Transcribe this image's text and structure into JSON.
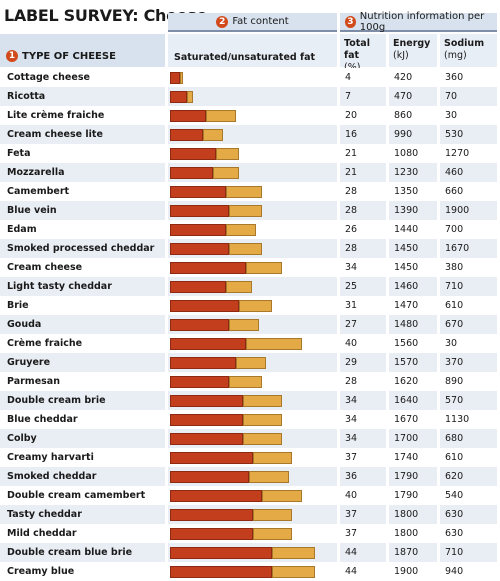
{
  "title": "LABEL SURVEY: Cheese",
  "headers": {
    "badge1": "1",
    "badge2": "2",
    "badge3": "3",
    "type_of_cheese": "TYPE OF CHEESE",
    "fat_content": "Fat content",
    "nutrition": "Nutrition information per 100g",
    "sat_unsat": "Saturated/unsaturated fat",
    "total_fat": "Total fat",
    "total_fat_unit": "(%)",
    "energy": "Energy",
    "energy_unit": "(kJ)",
    "sodium": "Sodium",
    "sodium_unit": "(mg)"
  },
  "colors": {
    "saturated": "#c33e1c",
    "unsaturated": "#e4aa45",
    "header_bg": "#d7e2ee",
    "badge": "#d24a1c"
  },
  "chart_data": {
    "type": "bar",
    "stacked": true,
    "orientation": "horizontal",
    "ylabel": "Saturated/unsaturated fat",
    "xlim": [
      0,
      50
    ],
    "categories": [
      "Cottage cheese",
      "Ricotta",
      "Lite crème fraiche",
      "Cream cheese lite",
      "Feta",
      "Mozzarella",
      "Camembert",
      "Blue vein",
      "Edam",
      "Smoked processed cheddar",
      "Cream cheese",
      "Light tasty cheddar",
      "Brie",
      "Gouda",
      "Crème fraiche",
      "Gruyere",
      "Parmesan",
      "Double cream brie",
      "Blue cheddar",
      "Colby",
      "Creamy harvarti",
      "Smoked cheddar",
      "Double cream camembert",
      "Tasty cheddar",
      "Mild cheddar",
      "Double cream blue brie",
      "Creamy blue"
    ],
    "series": [
      {
        "values": [
          3,
          5,
          11,
          10,
          14,
          13,
          17,
          18,
          17,
          18,
          23,
          17,
          21,
          18,
          23,
          20,
          18,
          22,
          22,
          22,
          25,
          24,
          28,
          25,
          25,
          31,
          31
        ]
      },
      {
        "values": [
          1,
          2,
          9,
          6,
          7,
          8,
          11,
          10,
          9,
          10,
          11,
          8,
          10,
          9,
          17,
          9,
          10,
          12,
          12,
          12,
          12,
          12,
          12,
          12,
          12,
          13,
          13
        ]
      }
    ],
    "total_fat": [
      4,
      7,
      20,
      16,
      21,
      21,
      28,
      28,
      26,
      28,
      34,
      25,
      31,
      27,
      40,
      29,
      28,
      34,
      34,
      34,
      37,
      36,
      40,
      37,
      37,
      44,
      44
    ],
    "energy_kj": [
      420,
      470,
      860,
      990,
      1080,
      1230,
      1350,
      1390,
      1440,
      1450,
      1450,
      1460,
      1470,
      1480,
      1560,
      1570,
      1620,
      1640,
      1670,
      1700,
      1740,
      1790,
      1790,
      1800,
      1800,
      1870,
      1900
    ],
    "sodium_mg": [
      360,
      70,
      30,
      530,
      1270,
      460,
      660,
      1900,
      700,
      1670,
      380,
      710,
      610,
      670,
      30,
      370,
      890,
      570,
      1130,
      680,
      610,
      620,
      540,
      630,
      630,
      710,
      940
    ]
  }
}
